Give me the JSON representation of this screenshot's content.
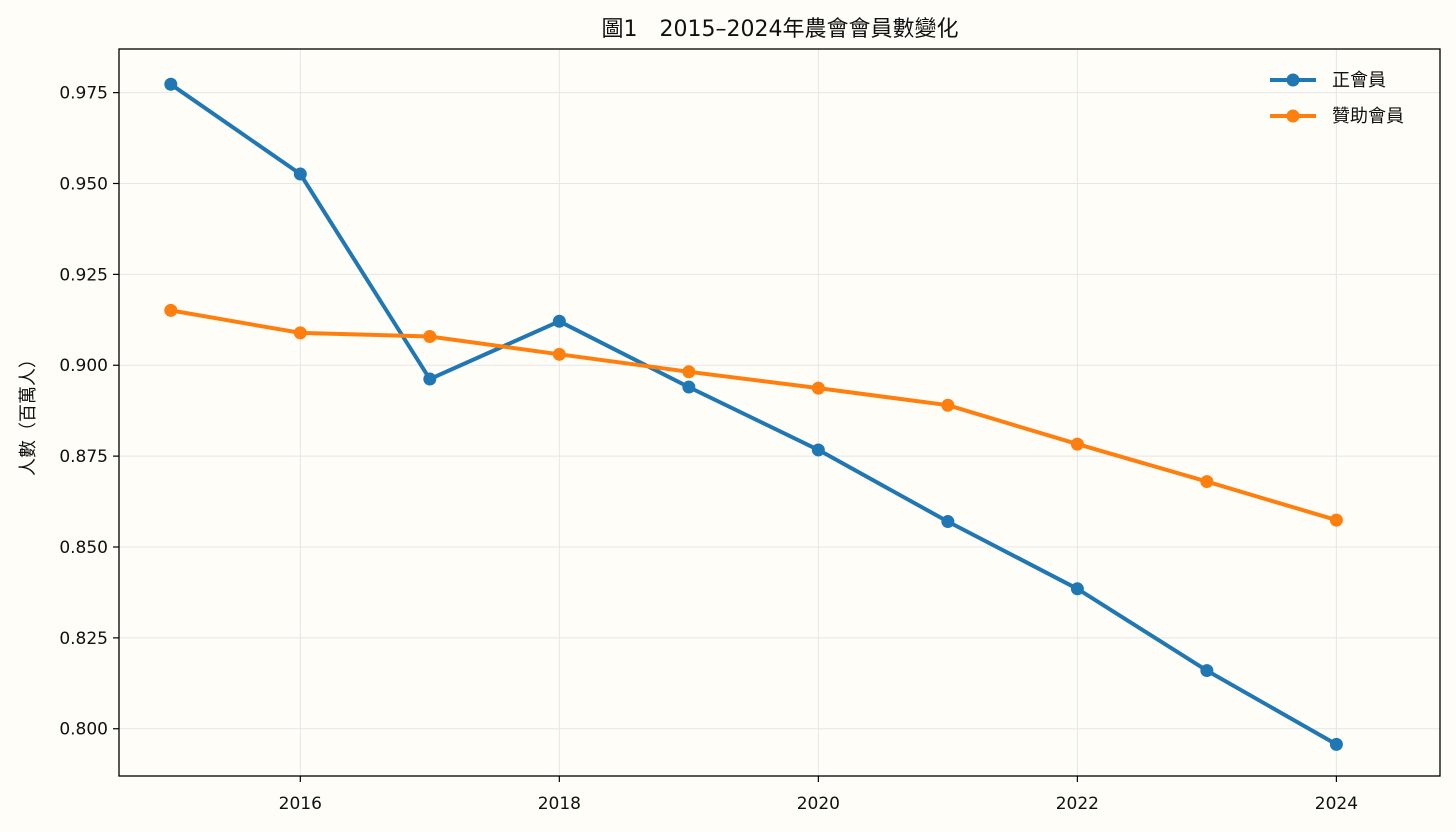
{
  "chart_data": {
    "type": "line",
    "title": "圖1　2015–2024年農會會員數變化",
    "xlabel": "",
    "ylabel": "人數（百萬人）",
    "x": [
      2015,
      2016,
      2017,
      2018,
      2019,
      2020,
      2021,
      2022,
      2023,
      2024
    ],
    "xlim": [
      2014.6,
      2024.8
    ],
    "ylim": [
      0.787,
      0.987
    ],
    "xticks": [
      2016,
      2018,
      2020,
      2022,
      2024
    ],
    "xtick_labels": [
      "2016",
      "2018",
      "2020",
      "2022",
      "2024"
    ],
    "yticks": [
      0.8,
      0.825,
      0.85,
      0.875,
      0.9,
      0.925,
      0.95,
      0.975
    ],
    "ytick_labels": [
      "0.800",
      "0.825",
      "0.850",
      "0.875",
      "0.900",
      "0.925",
      "0.950",
      "0.975"
    ],
    "grid": true,
    "legend_position": "top-right",
    "series": [
      {
        "name": "正會員",
        "color": "#1f77b4",
        "values": [
          0.9773,
          0.9526,
          0.8962,
          0.9121,
          0.894,
          0.8767,
          0.857,
          0.8385,
          0.816,
          0.7957
        ]
      },
      {
        "name": "贊助會員",
        "color": "#ff7f0e",
        "values": [
          0.9151,
          0.9089,
          0.9079,
          0.903,
          0.8982,
          0.8937,
          0.889,
          0.8783,
          0.868,
          0.8574
        ]
      }
    ]
  }
}
